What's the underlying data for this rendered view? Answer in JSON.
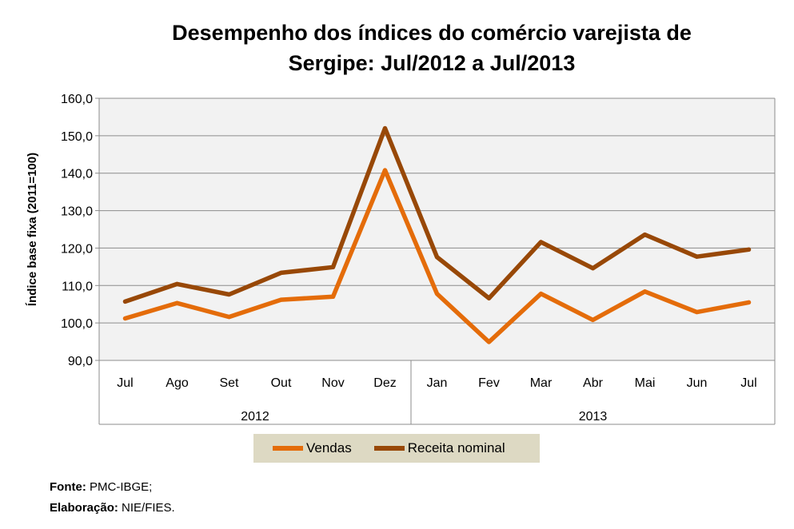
{
  "chart_data": {
    "type": "line",
    "title_line1": "Desempenho dos índices do comércio varejista de",
    "title_line2": "Sergipe: Jul/2012 a Jul/2013",
    "ylabel": "Índice base fixa (2011=100)",
    "xlabel": "",
    "ylim": [
      90,
      160
    ],
    "yticks": [
      "90,0",
      "100,0",
      "110,0",
      "120,0",
      "130,0",
      "140,0",
      "150,0",
      "160,0"
    ],
    "ytick_values": [
      90,
      100,
      110,
      120,
      130,
      140,
      150,
      160
    ],
    "categories": [
      "Jul",
      "Ago",
      "Set",
      "Out",
      "Nov",
      "Dez",
      "Jan",
      "Fev",
      "Mar",
      "Abr",
      "Mai",
      "Jun",
      "Jul"
    ],
    "groups": [
      {
        "label": "2012",
        "count": 6
      },
      {
        "label": "2013",
        "count": 7
      }
    ],
    "grid": true,
    "series": [
      {
        "name": "Vendas",
        "color": "#e46c0a",
        "values": [
          101.2,
          105.3,
          101.6,
          106.2,
          107.0,
          140.8,
          107.8,
          94.9,
          107.8,
          100.8,
          108.4,
          102.9,
          105.5
        ]
      },
      {
        "name": "Receita nominal",
        "color": "#984807",
        "values": [
          105.7,
          110.4,
          107.6,
          113.4,
          114.9,
          152.0,
          117.6,
          106.6,
          121.6,
          114.6,
          123.6,
          117.7,
          119.6
        ]
      }
    ],
    "legend_position": "bottom"
  },
  "source": {
    "fonte_label": "Fonte:",
    "fonte_value": "PMC-IBGE;",
    "elaboracao_label": "Elaboração:",
    "elaboracao_value": "NIE/FIES."
  }
}
